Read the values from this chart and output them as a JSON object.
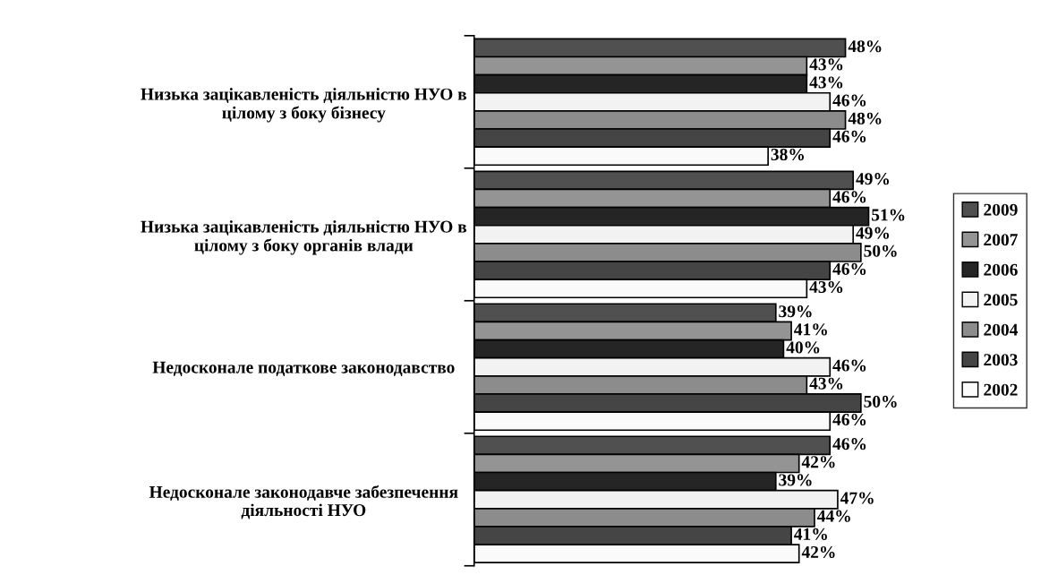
{
  "chart_data": {
    "type": "bar",
    "orientation": "horizontal",
    "categories": [
      "Низька зацікавленість діяльністю НУО в\nцілому з боку бізнесу",
      "Низька зацікавленість діяльністю НУО в\nцілому з боку органів влади",
      "Недосконале податкове законодавство",
      "Недосконале законодавче забезпечення\nдіяльності НУО"
    ],
    "series": [
      {
        "name": "2009",
        "color": "#505050",
        "values": [
          48,
          49,
          39,
          46
        ],
        "value_labels": [
          "48%",
          "49%",
          "39%",
          "46%"
        ]
      },
      {
        "name": "2007",
        "color": "#949494",
        "values": [
          43,
          46,
          41,
          42
        ],
        "value_labels": [
          "43%",
          "46%",
          "41%",
          "42%"
        ]
      },
      {
        "name": "2006",
        "color": "#252525",
        "values": [
          43,
          51,
          40,
          39
        ],
        "value_labels": [
          "43%",
          "51%",
          "40%",
          "39%"
        ]
      },
      {
        "name": "2005",
        "color": "#f2f2f2",
        "values": [
          46,
          49,
          46,
          47
        ],
        "value_labels": [
          "46%",
          "49%",
          "46%",
          "47%"
        ]
      },
      {
        "name": "2004",
        "color": "#8c8c8c",
        "values": [
          48,
          50,
          43,
          44
        ],
        "value_labels": [
          "48%",
          "50%",
          "43%",
          "44%"
        ]
      },
      {
        "name": "2003",
        "color": "#454545",
        "values": [
          46,
          46,
          50,
          41
        ],
        "value_labels": [
          "46%",
          "46%",
          "50%",
          "41%"
        ]
      },
      {
        "name": "2002",
        "color": "#fafafa",
        "values": [
          38,
          43,
          46,
          42
        ],
        "value_labels": [
          "38%",
          "43%",
          "46%",
          "42%"
        ]
      }
    ],
    "legend": "right",
    "grid": false
  }
}
